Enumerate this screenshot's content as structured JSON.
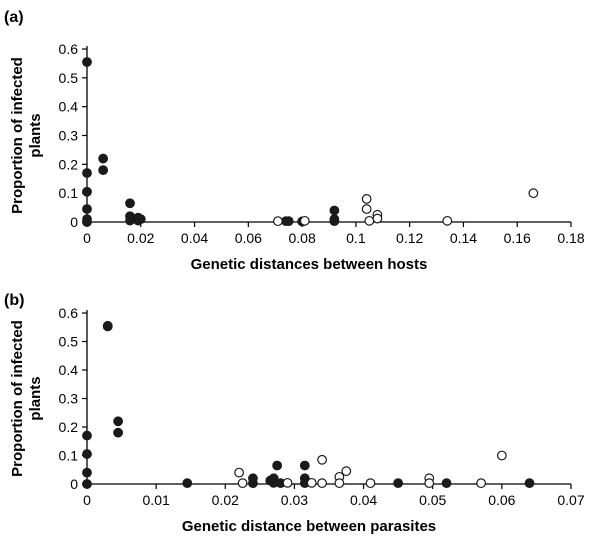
{
  "chart_data": [
    {
      "type": "scatter",
      "panel_label": "(a)",
      "xlabel": "Genetic distances between hosts",
      "ylabel": "Proportion of infected plants",
      "xlim": [
        0,
        0.18
      ],
      "ylim": [
        0,
        0.6
      ],
      "xticks": [
        "0",
        "0.02",
        "0.04",
        "0.06",
        "0.08",
        "0.1",
        "0.12",
        "0.14",
        "0.16",
        "0.18"
      ],
      "yticks": [
        "0",
        "0.1",
        "0.2",
        "0.3",
        "0.4",
        "0.5",
        "0.6"
      ],
      "grid": false,
      "series": [
        {
          "marker": "filled-circle",
          "color": "#1a1a1a",
          "points": [
            [
              0,
              0.555
            ],
            [
              0,
              0.17
            ],
            [
              0,
              0.105
            ],
            [
              0,
              0.045
            ],
            [
              0,
              0.01
            ],
            [
              0,
              0
            ],
            [
              0.006,
              0.22
            ],
            [
              0.006,
              0.18
            ],
            [
              0.016,
              0.065
            ],
            [
              0.016,
              0.02
            ],
            [
              0.016,
              0.005
            ],
            [
              0.019,
              0.015
            ],
            [
              0.019,
              0.005
            ],
            [
              0.02,
              0.01
            ],
            [
              0.074,
              0.003
            ],
            [
              0.075,
              0.003
            ],
            [
              0.08,
              0.002
            ],
            [
              0.092,
              0.04
            ],
            [
              0.092,
              0.01
            ],
            [
              0.092,
              0.003
            ]
          ]
        },
        {
          "marker": "open-circle",
          "color": "#1a1a1a",
          "points": [
            [
              0.071,
              0.003
            ],
            [
              0.081,
              0.004
            ],
            [
              0.104,
              0.08
            ],
            [
              0.104,
              0.045
            ],
            [
              0.105,
              0.004
            ],
            [
              0.108,
              0.025
            ],
            [
              0.108,
              0.012
            ],
            [
              0.134,
              0.004
            ],
            [
              0.166,
              0.1
            ]
          ]
        }
      ]
    },
    {
      "type": "scatter",
      "panel_label": "(b)",
      "xlabel": "Genetic distance between parasites",
      "ylabel": "Proportion of infected plants",
      "xlim": [
        0,
        0.07
      ],
      "ylim": [
        0,
        0.6
      ],
      "xticks": [
        "0",
        "0.01",
        "0.02",
        "0.03",
        "0.04",
        "0.05",
        "0.06",
        "0.07"
      ],
      "yticks": [
        "0",
        "0.1",
        "0.2",
        "0.3",
        "0.4",
        "0.5",
        "0.6"
      ],
      "grid": false,
      "series": [
        {
          "marker": "filled-circle",
          "color": "#1a1a1a",
          "points": [
            [
              0,
              0.17
            ],
            [
              0,
              0.105
            ],
            [
              0,
              0.04
            ],
            [
              0,
              0
            ],
            [
              0.003,
              0.555
            ],
            [
              0.003,
              0.553
            ],
            [
              0.0045,
              0.22
            ],
            [
              0.0045,
              0.18
            ],
            [
              0.0145,
              0.003
            ],
            [
              0.024,
              0.02
            ],
            [
              0.024,
              0.003
            ],
            [
              0.0265,
              0.012
            ],
            [
              0.027,
              0.02
            ],
            [
              0.027,
              0.004
            ],
            [
              0.0275,
              0.065
            ],
            [
              0.028,
              0.003
            ],
            [
              0.0315,
              0.065
            ],
            [
              0.0315,
              0.02
            ],
            [
              0.0315,
              0.003
            ],
            [
              0.045,
              0.003
            ],
            [
              0.052,
              0.003
            ],
            [
              0.064,
              0.003
            ]
          ]
        },
        {
          "marker": "open-circle",
          "color": "#1a1a1a",
          "points": [
            [
              0.022,
              0.04
            ],
            [
              0.0225,
              0.003
            ],
            [
              0.029,
              0.004
            ],
            [
              0.0325,
              0.004
            ],
            [
              0.034,
              0.085
            ],
            [
              0.034,
              0.003
            ],
            [
              0.0365,
              0.025
            ],
            [
              0.0365,
              0.003
            ],
            [
              0.0375,
              0.045
            ],
            [
              0.041,
              0.003
            ],
            [
              0.0495,
              0.02
            ],
            [
              0.0495,
              0.003
            ],
            [
              0.057,
              0.003
            ],
            [
              0.06,
              0.1
            ]
          ]
        }
      ]
    }
  ]
}
